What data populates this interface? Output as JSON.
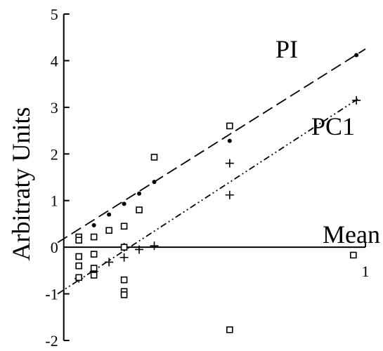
{
  "chart_data": {
    "type": "scatter",
    "ylabel": "Arbitraty Units",
    "xlim": [
      -0.025,
      1.0
    ],
    "ylim": [
      -2,
      5
    ],
    "x_ticks": [
      {
        "value": 1,
        "label": "1"
      }
    ],
    "y_ticks": [
      {
        "value": 5,
        "label": "5"
      },
      {
        "value": 4,
        "label": "4"
      },
      {
        "value": 3,
        "label": "3"
      },
      {
        "value": 2,
        "label": "2"
      },
      {
        "value": 1,
        "label": "1"
      },
      {
        "value": 0,
        "label": "0"
      },
      {
        "value": -1,
        "label": "-1"
      },
      {
        "value": -2,
        "label": "-2"
      }
    ],
    "grid": false,
    "lines": [
      {
        "label": "PI",
        "style": "dashed",
        "from": [
          -0.02,
          0.1
        ],
        "to": [
          1.0,
          4.25
        ]
      },
      {
        "label": "PC1",
        "style": "dash-dot-dot",
        "from": [
          -0.02,
          -1.0
        ],
        "to": [
          0.98,
          3.2
        ]
      }
    ],
    "axis_labels": [
      {
        "text": "Mean",
        "x": 0.93,
        "y": 0.12
      }
    ],
    "series": [
      {
        "marker": "dot",
        "points": [
          [
            0.05,
            0.22
          ],
          [
            0.1,
            0.47
          ],
          [
            0.15,
            0.7
          ],
          [
            0.2,
            0.93
          ],
          [
            0.25,
            1.15
          ],
          [
            0.3,
            1.4
          ],
          [
            0.55,
            2.28
          ],
          [
            0.97,
            4.12
          ]
        ]
      },
      {
        "marker": "plus",
        "points": [
          [
            0.05,
            -0.67
          ],
          [
            0.1,
            -0.52
          ],
          [
            0.15,
            -0.32
          ],
          [
            0.2,
            -0.22
          ],
          [
            0.2,
            0.0
          ],
          [
            0.25,
            -0.05
          ],
          [
            0.3,
            0.03
          ],
          [
            0.55,
            1.12
          ],
          [
            0.55,
            1.8
          ],
          [
            0.97,
            3.15
          ]
        ]
      },
      {
        "marker": "square",
        "points": [
          [
            0.05,
            0.22
          ],
          [
            0.05,
            0.15
          ],
          [
            0.05,
            -0.2
          ],
          [
            0.05,
            -0.4
          ],
          [
            0.05,
            -0.65
          ],
          [
            0.1,
            0.22
          ],
          [
            0.1,
            -0.15
          ],
          [
            0.1,
            -0.45
          ],
          [
            0.1,
            -0.6
          ],
          [
            0.15,
            0.36
          ],
          [
            0.2,
            0.45
          ],
          [
            0.2,
            0.0
          ],
          [
            0.2,
            -0.7
          ],
          [
            0.2,
            -0.95
          ],
          [
            0.2,
            -1.02
          ],
          [
            0.25,
            0.8
          ],
          [
            0.3,
            1.93
          ],
          [
            0.55,
            2.6
          ],
          [
            0.55,
            -1.77
          ],
          [
            0.96,
            -0.17
          ]
        ]
      }
    ]
  }
}
